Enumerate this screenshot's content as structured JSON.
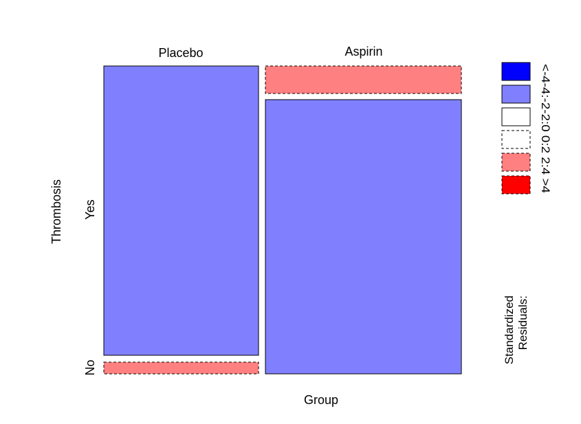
{
  "chart_data": {
    "type": "mosaic",
    "xlabel": "Group",
    "ylabel": "Thrombosis",
    "categories_x": [
      "Placebo",
      "Aspirin"
    ],
    "categories_y": [
      "No",
      "Yes"
    ],
    "column_proportions": [
      0.44,
      0.56
    ],
    "cells": [
      {
        "group": "Placebo",
        "thrombosis": "No",
        "proportion": 0.04,
        "residual_class": "-4:-2"
      },
      {
        "group": "Placebo",
        "thrombosis": "Yes",
        "proportion": 0.96,
        "residual_class": "2:4"
      },
      {
        "group": "Aspirin",
        "thrombosis": "No",
        "proportion": 0.91,
        "residual_class": "2:4"
      },
      {
        "group": "Aspirin",
        "thrombosis": "Yes",
        "proportion": 0.09,
        "residual_class": "-4:-2"
      }
    ],
    "legend": {
      "title_line1": "Standardized",
      "title_line2": "Residuals:",
      "entries": [
        {
          "label": "<-4",
          "fill": "#ff0000",
          "dashed": true
        },
        {
          "label": "-4:-2",
          "fill": "#ff8080",
          "dashed": true
        },
        {
          "label": "-2:0",
          "fill": "#ffffff",
          "dashed": true
        },
        {
          "label": "0:2",
          "fill": "#ffffff",
          "dashed": false
        },
        {
          "label": "2:4",
          "fill": "#8080ff",
          "dashed": false
        },
        {
          "label": ">4",
          "fill": "#0000ff",
          "dashed": false
        }
      ],
      "label_text": "<-4-4:-2-2:0 0:2 2:4 >4"
    },
    "colors": {
      "positive_strong": "#0000ff",
      "positive": "#8080ff",
      "negative": "#ff8080",
      "negative_strong": "#ff0000",
      "neutral": "#ffffff"
    }
  }
}
